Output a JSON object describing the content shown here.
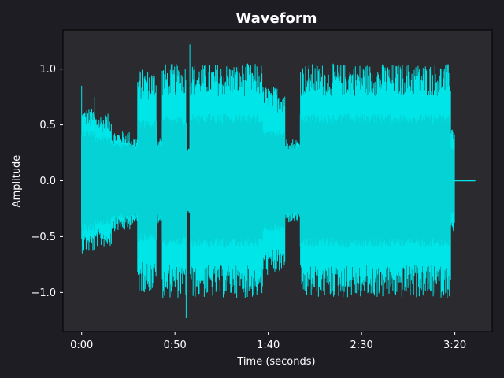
{
  "chart_data": {
    "type": "line",
    "title": "Waveform",
    "xlabel": "Time (seconds)",
    "ylabel": "Amplitude",
    "xlim": [
      -10,
      220
    ],
    "ylim": [
      -1.35,
      1.35
    ],
    "x_ticks": [
      {
        "value": 0,
        "label": "0:00"
      },
      {
        "value": 50,
        "label": "0:50"
      },
      {
        "value": 100,
        "label": "1:40"
      },
      {
        "value": 150,
        "label": "2:30"
      },
      {
        "value": 200,
        "label": "3:20"
      }
    ],
    "y_ticks": [
      {
        "value": 1.0,
        "label": "1.0"
      },
      {
        "value": 0.5,
        "label": "0.5"
      },
      {
        "value": 0.0,
        "label": "0.0"
      },
      {
        "value": -0.5,
        "label": "−0.5"
      },
      {
        "value": -1.0,
        "label": "−1.0"
      }
    ],
    "duration": 211,
    "envelope": {
      "columns": "time_start, time_end, outer_peak, inner_body",
      "segments": [
        [
          0,
          7,
          0.65,
          0.45
        ],
        [
          7,
          16,
          0.6,
          0.4
        ],
        [
          16,
          26,
          0.45,
          0.34
        ],
        [
          26,
          30,
          0.4,
          0.32
        ],
        [
          30,
          40,
          1.0,
          0.55
        ],
        [
          40,
          43,
          0.4,
          0.35
        ],
        [
          43,
          56,
          1.05,
          0.58
        ],
        [
          56,
          58,
          0.3,
          0.3
        ],
        [
          58,
          97,
          1.05,
          0.6
        ],
        [
          97,
          109,
          0.85,
          0.45
        ],
        [
          109,
          117,
          0.38,
          0.32
        ],
        [
          117,
          198,
          1.05,
          0.6
        ],
        [
          198,
          200,
          0.5,
          0.3
        ],
        [
          200,
          211,
          0.0,
          0.0
        ]
      ],
      "peaks": [
        [
          0,
          0.85
        ],
        [
          7,
          0.75
        ],
        [
          58,
          1.22
        ],
        [
          56,
          -1.23
        ],
        [
          89,
          1.05
        ]
      ]
    },
    "series": [
      {
        "color": "#00e5e8"
      }
    ],
    "grid": false,
    "legend": "none",
    "colors": {
      "figure_bg": "#1e1d24",
      "axes_bg": "#2b2b2f",
      "text": "#ffffff",
      "wave_outer": "#00f2f4",
      "wave_inner": "#05d2d4"
    }
  }
}
